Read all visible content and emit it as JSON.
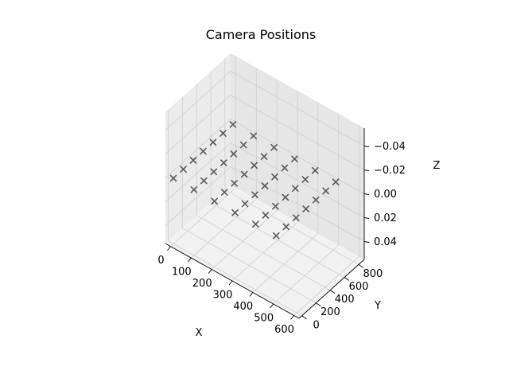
{
  "chart_data": {
    "type": "scatter3d",
    "title": "Camera Positions",
    "xlabel": "X",
    "ylabel": "Y",
    "zlabel": "Z",
    "xlim": [
      -25,
      625
    ],
    "ylim": [
      -40,
      880
    ],
    "zlim": [
      -0.055,
      0.055
    ],
    "z_inverted": true,
    "xticks": [
      0,
      100,
      200,
      300,
      400,
      500,
      600
    ],
    "yticks": [
      0,
      200,
      400,
      600,
      800
    ],
    "zticks": [
      -0.04,
      -0.02,
      0.0,
      0.02,
      0.04
    ],
    "zticklabels": [
      "−0.04",
      "−0.02",
      "0.00",
      "0.02",
      "0.04"
    ],
    "grid": true,
    "marker": "x",
    "marker_color": "#595959",
    "series": [
      {
        "x": [
          0,
          100,
          200,
          300,
          400,
          500,
          0,
          100,
          200,
          300,
          400,
          500,
          0,
          100,
          200,
          300,
          400,
          500,
          0,
          100,
          200,
          300,
          400,
          500,
          0,
          100,
          200,
          300,
          400,
          500,
          0,
          100,
          200,
          300,
          400,
          500,
          0,
          100,
          200,
          300,
          400,
          500
        ],
        "y": [
          0,
          0,
          0,
          0,
          0,
          0,
          140,
          140,
          140,
          140,
          140,
          140,
          280,
          280,
          280,
          280,
          280,
          280,
          420,
          420,
          420,
          420,
          420,
          420,
          560,
          560,
          560,
          560,
          560,
          560,
          700,
          700,
          700,
          700,
          700,
          700,
          840,
          840,
          840,
          840,
          840,
          840
        ],
        "z": [
          0,
          0,
          0,
          0,
          0,
          0,
          0,
          0,
          0,
          0,
          0,
          0,
          0,
          0,
          0,
          0,
          0,
          0,
          0,
          0,
          0,
          0,
          0,
          0,
          0,
          0,
          0,
          0,
          0,
          0,
          0,
          0,
          0,
          0,
          0,
          0,
          0,
          0,
          0,
          0,
          0,
          0
        ]
      }
    ]
  }
}
